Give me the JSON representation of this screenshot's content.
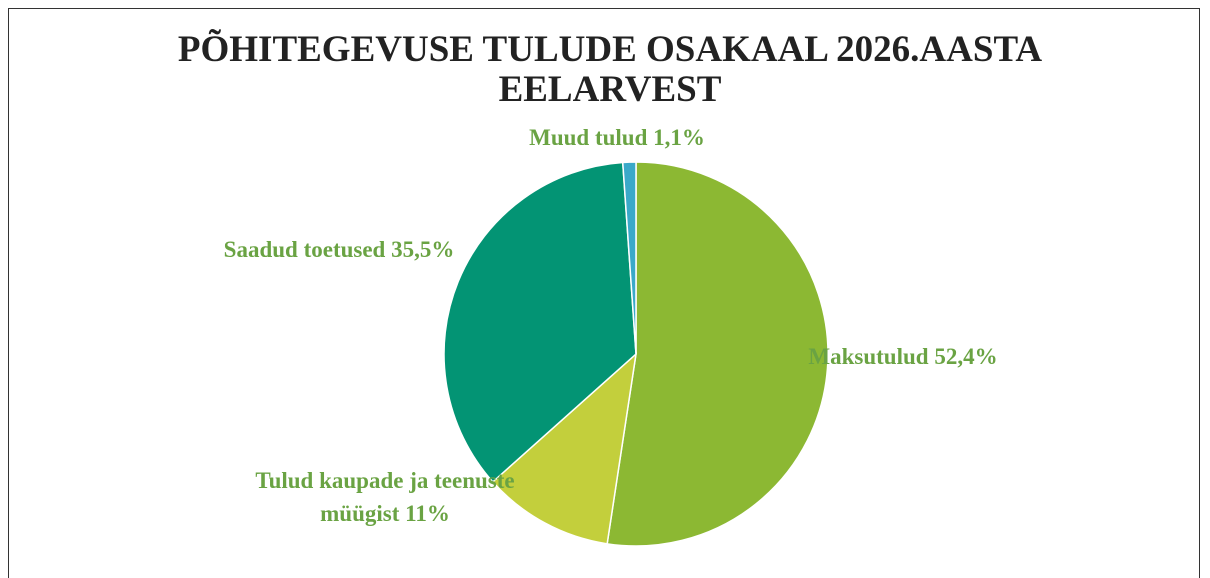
{
  "chart_data": {
    "type": "pie",
    "title": "PÕHITEGEVUSE TULUDE OSAKAAL 2026.AASTA EELARVEST",
    "categories": [
      "Maksutulud",
      "Tulud kaupade ja teenuste müügist",
      "Saadud toetused",
      "Muud tulud"
    ],
    "values": [
      52.4,
      11,
      35.5,
      1.1
    ],
    "value_labels": [
      "52,4%",
      "11%",
      "35,5%",
      "1,1%"
    ],
    "colors": [
      "#8cb833",
      "#c3cf3c",
      "#039474",
      "#3aa9c9"
    ],
    "label_color": "#6aa343"
  }
}
